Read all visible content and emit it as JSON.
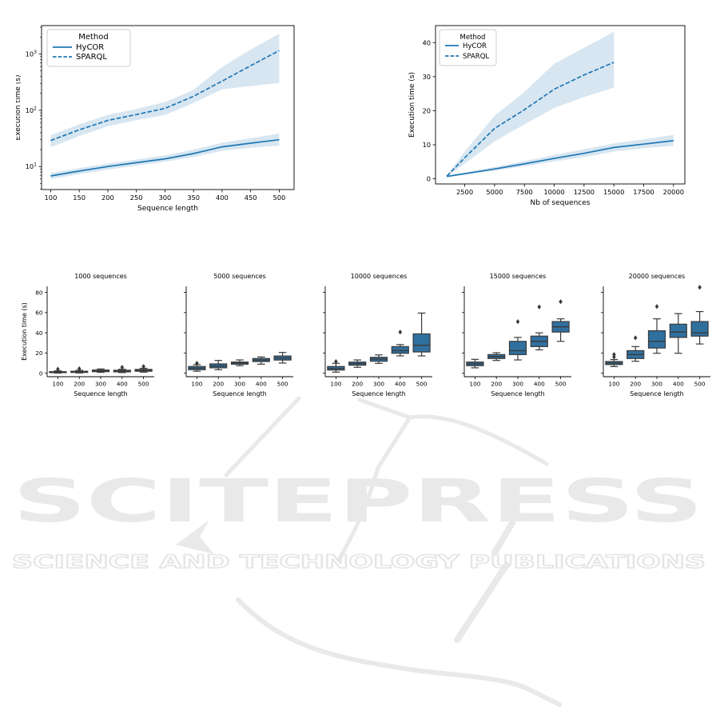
{
  "figure": {
    "background": "#ffffff"
  },
  "colors": {
    "line": "#1f77b4",
    "band": "#1f77b4",
    "band_opacity": 0.18,
    "box_fill": "#30709f",
    "box_edge": "#3a3a3a",
    "axis": "#000000",
    "legend_border": "#cccccc",
    "watermark": "#e9e9e9"
  },
  "watermark": {
    "line1": "SCITEPRESS",
    "line2": "SCIENCE AND TECHNOLOGY PUBLICATIONS"
  },
  "chart_data": [
    {
      "id": "exec-time-vs-sequence-length",
      "type": "line",
      "yscale": "log",
      "xlabel": "Sequence length",
      "ylabel": "Execution time (s)",
      "xlim": [
        84,
        526
      ],
      "ylim": [
        3.9,
        3200
      ],
      "xticks": [
        100,
        150,
        200,
        250,
        300,
        350,
        400,
        450,
        500
      ],
      "yticks_log": [
        {
          "v": 10,
          "exp": "1"
        },
        {
          "v": 100,
          "exp": "2"
        },
        {
          "v": 1000,
          "exp": "3"
        }
      ],
      "legend": {
        "title": "Method",
        "entries": [
          {
            "label": "HyCOR",
            "dash": "solid"
          },
          {
            "label": "SPARQL",
            "dash": "dashed"
          }
        ]
      },
      "series": [
        {
          "name": "HyCOR",
          "dash": "solid",
          "x": [
            100,
            150,
            200,
            250,
            300,
            350,
            400,
            450,
            500
          ],
          "y": [
            6.8,
            8.3,
            10,
            11.7,
            13.7,
            17,
            22.4,
            26,
            30
          ],
          "lo": [
            6.0,
            7.3,
            8.8,
            10.4,
            12.2,
            14.8,
            19,
            21.5,
            23.5
          ],
          "hi": [
            7.7,
            9.4,
            11.3,
            13.3,
            15.8,
            20,
            26.5,
            32,
            38.5
          ]
        },
        {
          "name": "SPARQL",
          "dash": "dashed",
          "x": [
            100,
            150,
            200,
            250,
            300,
            350,
            400,
            450,
            500
          ],
          "y": [
            29,
            45,
            66,
            84,
            108,
            177,
            330,
            620,
            1150
          ],
          "lo": [
            22,
            35,
            52,
            67,
            83,
            135,
            235,
            270,
            305
          ],
          "hi": [
            36,
            56,
            83,
            105,
            140,
            230,
            590,
            1200,
            2290
          ]
        }
      ]
    },
    {
      "id": "exec-time-vs-nb-sequences",
      "type": "line",
      "yscale": "linear",
      "xlabel": "Nb of sequences",
      "ylabel": "Execution time (s)",
      "xlim": [
        50,
        20950
      ],
      "ylim": [
        -1.5,
        45
      ],
      "xticks": [
        2500,
        5000,
        7500,
        10000,
        12500,
        15000,
        17500,
        20000
      ],
      "yticks": [
        0,
        10,
        20,
        30,
        40
      ],
      "legend": {
        "title": "Method",
        "entries": [
          {
            "label": "HyCOR",
            "dash": "solid"
          },
          {
            "label": "SPARQL",
            "dash": "dashed"
          }
        ]
      },
      "series": [
        {
          "name": "HyCOR",
          "dash": "solid",
          "x": [
            1000,
            2500,
            5000,
            7500,
            10000,
            12500,
            15000,
            17500,
            20000
          ],
          "y": [
            0.7,
            1.5,
            2.9,
            4.4,
            6.0,
            7.5,
            9.2,
            10.2,
            11.2
          ],
          "lo": [
            0.5,
            1.2,
            2.4,
            3.7,
            5.1,
            6.4,
            8.0,
            9.0,
            9.7
          ],
          "hi": [
            0.9,
            1.9,
            3.5,
            5.2,
            7.0,
            8.7,
            10.4,
            11.6,
            12.9
          ]
        },
        {
          "name": "SPARQL",
          "dash": "dashed",
          "x": [
            1000,
            2500,
            5000,
            7500,
            10000,
            12500,
            15000
          ],
          "y": [
            0.8,
            6.2,
            14.8,
            20.3,
            26.3,
            30.5,
            34.2
          ],
          "lo": [
            0.6,
            4.5,
            11,
            16,
            20.8,
            24,
            26.8
          ],
          "hi": [
            1.0,
            8,
            18.5,
            25.5,
            33.8,
            38.5,
            43.2
          ]
        }
      ]
    },
    {
      "id": "boxplots-by-nb-sequences",
      "type": "box",
      "xlabel": "Sequence length",
      "ylabel": "Execution time (s)",
      "ylim": [
        -3.5,
        86
      ],
      "yticks": [
        0,
        20,
        40,
        60,
        80
      ],
      "categories": [
        "100",
        "200",
        "300",
        "400",
        "500"
      ],
      "panels": [
        {
          "title": "1000 sequences",
          "boxes": [
            {
              "lo": 0.1,
              "q1": 0.5,
              "med": 1.0,
              "q3": 1.5,
              "hi": 2.3,
              "fliers": [
                3.9
              ]
            },
            {
              "lo": 0.2,
              "q1": 0.7,
              "med": 1.2,
              "q3": 1.9,
              "hi": 2.8,
              "fliers": [
                4.4
              ]
            },
            {
              "lo": 0.8,
              "q1": 1.5,
              "med": 2.2,
              "q3": 3.1,
              "hi": 4.2,
              "fliers": []
            },
            {
              "lo": 0.6,
              "q1": 1.3,
              "med": 2.0,
              "q3": 2.9,
              "hi": 3.9,
              "fliers": [
                5.8
              ]
            },
            {
              "lo": 1.0,
              "q1": 1.9,
              "med": 2.7,
              "q3": 3.7,
              "hi": 4.8,
              "fliers": [
                6.6
              ]
            }
          ]
        },
        {
          "title": "5000 sequences",
          "boxes": [
            {
              "lo": 1.9,
              "q1": 3.4,
              "med": 5.0,
              "q3": 6.6,
              "hi": 8.4,
              "fliers": [
                9.8
              ]
            },
            {
              "lo": 3.4,
              "q1": 5.3,
              "med": 7.1,
              "q3": 9.2,
              "hi": 12.6,
              "fliers": []
            },
            {
              "lo": 7.4,
              "q1": 8.9,
              "med": 10.0,
              "q3": 11.0,
              "hi": 13.1,
              "fliers": []
            },
            {
              "lo": 8.9,
              "q1": 11.5,
              "med": 13.0,
              "q3": 14.5,
              "hi": 16.0,
              "fliers": []
            },
            {
              "lo": 10.0,
              "q1": 13.0,
              "med": 15.0,
              "q3": 17.0,
              "hi": 20.5,
              "fliers": []
            }
          ]
        },
        {
          "title": "10000 sequences",
          "boxes": [
            {
              "lo": 1.0,
              "q1": 3.1,
              "med": 4.7,
              "q3": 6.6,
              "hi": 9.7,
              "fliers": [
                11.5
              ]
            },
            {
              "lo": 5.8,
              "q1": 7.9,
              "med": 9.4,
              "q3": 11.0,
              "hi": 13.1,
              "fliers": []
            },
            {
              "lo": 9.7,
              "q1": 11.8,
              "med": 13.9,
              "q3": 15.7,
              "hi": 18.1,
              "fliers": []
            },
            {
              "lo": 17.1,
              "q1": 19.7,
              "med": 22.3,
              "q3": 26.3,
              "hi": 28.3,
              "fliers": [
                40.7
              ]
            },
            {
              "lo": 17.1,
              "q1": 21.0,
              "med": 27.5,
              "q3": 38.9,
              "hi": 59.5,
              "fliers": []
            }
          ]
        },
        {
          "title": "15000 sequences",
          "boxes": [
            {
              "lo": 5.3,
              "q1": 7.4,
              "med": 9.2,
              "q3": 11.0,
              "hi": 13.7,
              "fliers": []
            },
            {
              "lo": 12.6,
              "q1": 14.5,
              "med": 16.5,
              "q3": 18.4,
              "hi": 20.2,
              "fliers": []
            },
            {
              "lo": 13.1,
              "q1": 18.4,
              "med": 22.3,
              "q3": 31.5,
              "hi": 35.4,
              "fliers": [
                51.0
              ]
            },
            {
              "lo": 23.1,
              "q1": 26.3,
              "med": 31.5,
              "q3": 36.7,
              "hi": 39.9,
              "fliers": [
                65.6
              ]
            },
            {
              "lo": 31.5,
              "q1": 40.7,
              "med": 45.9,
              "q3": 51.1,
              "hi": 53.8,
              "fliers": [
                70.8
              ]
            }
          ]
        },
        {
          "title": "20000 sequences",
          "boxes": [
            {
              "lo": 6.5,
              "q1": 8.5,
              "med": 10.0,
              "q3": 11.5,
              "hi": 13.5,
              "fliers": [
                16.0,
                18.5
              ]
            },
            {
              "lo": 11.8,
              "q1": 14.5,
              "med": 18.4,
              "q3": 22.3,
              "hi": 26.3,
              "fliers": [
                35.0
              ]
            },
            {
              "lo": 19.7,
              "q1": 24.9,
              "med": 31.5,
              "q3": 42.0,
              "hi": 53.8,
              "fliers": [
                66.0
              ]
            },
            {
              "lo": 19.7,
              "q1": 35.4,
              "med": 40.7,
              "q3": 48.5,
              "hi": 59.0,
              "fliers": []
            },
            {
              "lo": 28.9,
              "q1": 36.7,
              "med": 39.9,
              "q3": 51.1,
              "hi": 61.0,
              "fliers": [
                85.0
              ]
            }
          ]
        }
      ]
    }
  ]
}
